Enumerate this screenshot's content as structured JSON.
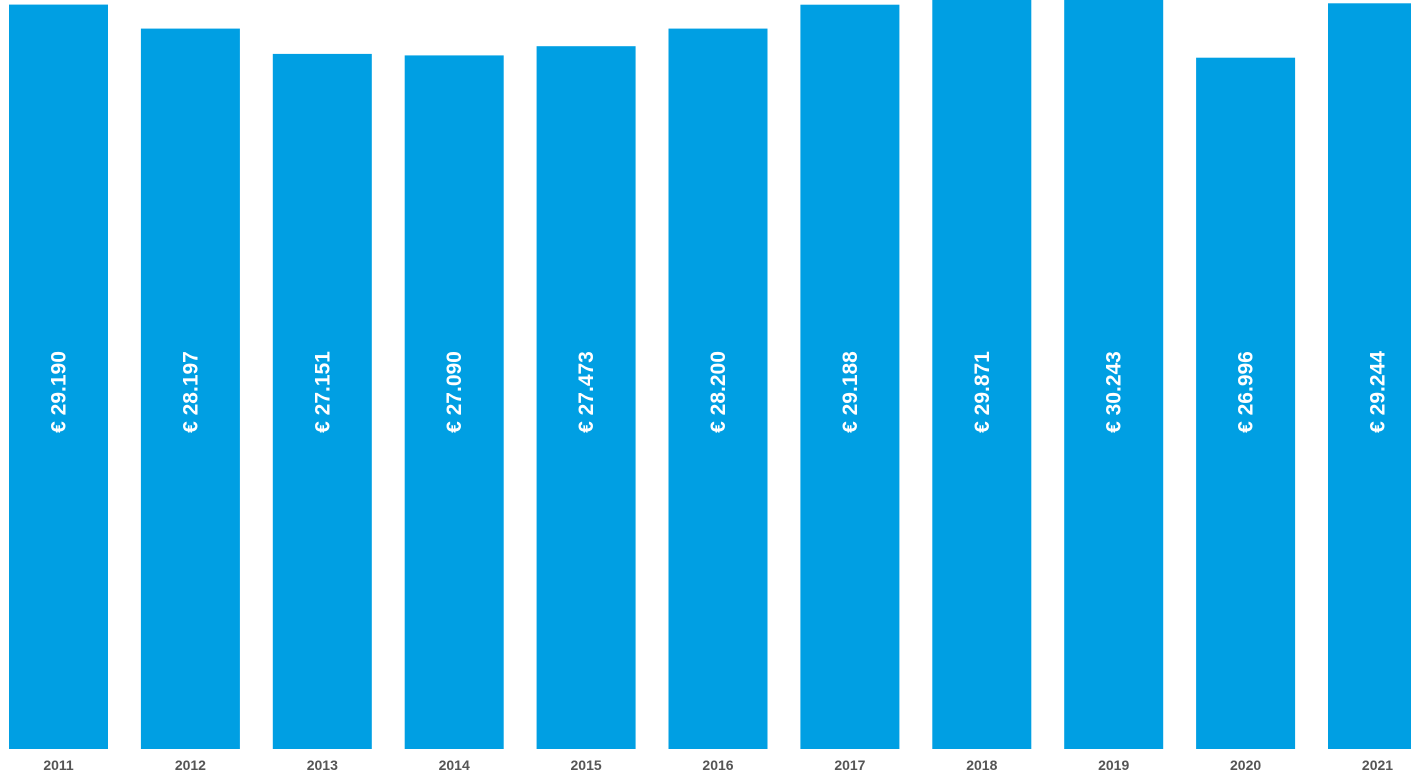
{
  "chart_data": {
    "type": "bar",
    "categories": [
      "2011",
      "2012",
      "2013",
      "2014",
      "2015",
      "2016",
      "2017",
      "2018",
      "2019",
      "2020",
      "2021"
    ],
    "values": [
      29190,
      28197,
      27151,
      27090,
      27473,
      28200,
      29188,
      29871,
      30243,
      26996,
      29244
    ],
    "data_labels": [
      "€ 29.190",
      "€ 28.197",
      "€ 27.151",
      "€ 27.090",
      "€ 27.473",
      "€ 28.200",
      "€ 29.188",
      "€ 29.871",
      "€ 30.243",
      "€ 26.996",
      "€ 29.244"
    ],
    "title": "",
    "xlabel": "",
    "ylabel": "",
    "ylim": [
      0,
      30750
    ],
    "grid": false,
    "legend": "none",
    "bar_color": "#009fe3",
    "label_color": "#ffffff",
    "tick_color": "#555555"
  }
}
